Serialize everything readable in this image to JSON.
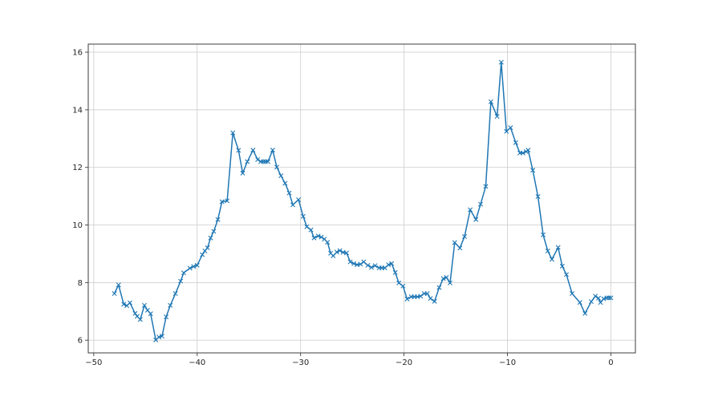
{
  "figure": {
    "background": "#ffffff",
    "title": ""
  },
  "chart_data": {
    "type": "line",
    "title": "",
    "xlabel": "",
    "ylabel": "",
    "grid": true,
    "legend": null,
    "marker": "x",
    "line_color": "#1f77b4",
    "grid_color": "#d2d2d2",
    "axis_color": "#3d3d3d",
    "tick_label_color": "#262626",
    "xlim": [
      -50.53,
      2.37
    ],
    "ylim": [
      5.56,
      16.28
    ],
    "x_ticks": [
      -50,
      -40,
      -30,
      -20,
      -10,
      0
    ],
    "x_tick_labels": [
      "−50",
      "−40",
      "−30",
      "−20",
      "−10",
      "0"
    ],
    "y_ticks": [
      6,
      8,
      10,
      12,
      14,
      16
    ],
    "y_tick_labels": [
      "6",
      "8",
      "10",
      "12",
      "14",
      "16"
    ],
    "series": [
      {
        "name": "series-1",
        "points": [
          [
            -48.0,
            7.62
          ],
          [
            -47.6,
            7.92
          ],
          [
            -47.1,
            7.25
          ],
          [
            -46.8,
            7.2
          ],
          [
            -46.5,
            7.3
          ],
          [
            -46.0,
            6.93
          ],
          [
            -45.8,
            6.83
          ],
          [
            -45.5,
            6.72
          ],
          [
            -45.1,
            7.21
          ],
          [
            -44.8,
            7.04
          ],
          [
            -44.5,
            6.92
          ],
          [
            -44.0,
            6.01
          ],
          [
            -43.7,
            6.11
          ],
          [
            -43.4,
            6.14
          ],
          [
            -43.0,
            6.81
          ],
          [
            -42.6,
            7.21
          ],
          [
            -42.1,
            7.62
          ],
          [
            -41.6,
            8.05
          ],
          [
            -41.3,
            8.34
          ],
          [
            -40.7,
            8.5
          ],
          [
            -40.35,
            8.56
          ],
          [
            -40.0,
            8.6
          ],
          [
            -39.5,
            8.97
          ],
          [
            -39.25,
            9.1
          ],
          [
            -39.0,
            9.21
          ],
          [
            -38.7,
            9.55
          ],
          [
            -38.4,
            9.78
          ],
          [
            -38.0,
            10.19
          ],
          [
            -37.6,
            10.81
          ],
          [
            -37.1,
            10.84
          ],
          [
            -36.55,
            13.2
          ],
          [
            -36.0,
            12.59
          ],
          [
            -35.6,
            11.8
          ],
          [
            -35.15,
            12.2
          ],
          [
            -34.6,
            12.6
          ],
          [
            -34.15,
            12.27
          ],
          [
            -33.85,
            12.2
          ],
          [
            -33.6,
            12.2
          ],
          [
            -33.4,
            12.2
          ],
          [
            -33.15,
            12.2
          ],
          [
            -32.7,
            12.6
          ],
          [
            -32.3,
            12.01
          ],
          [
            -31.9,
            11.71
          ],
          [
            -31.5,
            11.45
          ],
          [
            -31.1,
            11.11
          ],
          [
            -30.75,
            10.7
          ],
          [
            -30.2,
            10.88
          ],
          [
            -29.75,
            10.3
          ],
          [
            -29.4,
            9.94
          ],
          [
            -29.0,
            9.83
          ],
          [
            -28.7,
            9.55
          ],
          [
            -28.3,
            9.62
          ],
          [
            -28.0,
            9.58
          ],
          [
            -27.7,
            9.51
          ],
          [
            -27.4,
            9.4
          ],
          [
            -27.1,
            9.02
          ],
          [
            -26.85,
            8.93
          ],
          [
            -26.5,
            9.06
          ],
          [
            -26.2,
            9.11
          ],
          [
            -25.9,
            9.05
          ],
          [
            -25.55,
            9.03
          ],
          [
            -25.2,
            8.72
          ],
          [
            -24.85,
            8.66
          ],
          [
            -24.55,
            8.62
          ],
          [
            -24.2,
            8.64
          ],
          [
            -23.9,
            8.72
          ],
          [
            -23.5,
            8.6
          ],
          [
            -23.15,
            8.53
          ],
          [
            -22.8,
            8.59
          ],
          [
            -22.4,
            8.51
          ],
          [
            -22.15,
            8.51
          ],
          [
            -21.85,
            8.51
          ],
          [
            -21.5,
            8.62
          ],
          [
            -21.2,
            8.66
          ],
          [
            -20.85,
            8.35
          ],
          [
            -20.5,
            7.99
          ],
          [
            -20.1,
            7.88
          ],
          [
            -19.7,
            7.43
          ],
          [
            -19.3,
            7.51
          ],
          [
            -19.0,
            7.51
          ],
          [
            -18.7,
            7.51
          ],
          [
            -18.4,
            7.53
          ],
          [
            -18.05,
            7.62
          ],
          [
            -17.75,
            7.62
          ],
          [
            -17.45,
            7.45
          ],
          [
            -17.05,
            7.35
          ],
          [
            -16.6,
            7.83
          ],
          [
            -16.2,
            8.14
          ],
          [
            -15.9,
            8.18
          ],
          [
            -15.55,
            7.99
          ],
          [
            -15.1,
            9.39
          ],
          [
            -14.6,
            9.2
          ],
          [
            -14.15,
            9.6
          ],
          [
            -13.6,
            10.53
          ],
          [
            -13.05,
            10.19
          ],
          [
            -12.6,
            10.72
          ],
          [
            -12.1,
            11.34
          ],
          [
            -11.6,
            14.28
          ],
          [
            -11.0,
            13.77
          ],
          [
            -10.6,
            15.65
          ],
          [
            -10.1,
            13.25
          ],
          [
            -9.7,
            13.38
          ],
          [
            -9.2,
            12.86
          ],
          [
            -8.8,
            12.5
          ],
          [
            -8.5,
            12.5
          ],
          [
            -8.2,
            12.55
          ],
          [
            -8.0,
            12.6
          ],
          [
            -7.55,
            11.9
          ],
          [
            -7.05,
            10.99
          ],
          [
            -6.55,
            9.66
          ],
          [
            -6.1,
            9.1
          ],
          [
            -5.7,
            8.81
          ],
          [
            -5.1,
            9.22
          ],
          [
            -4.7,
            8.57
          ],
          [
            -4.3,
            8.28
          ],
          [
            -3.75,
            7.62
          ],
          [
            -3.0,
            7.31
          ],
          [
            -2.5,
            6.93
          ],
          [
            -1.9,
            7.34
          ],
          [
            -1.5,
            7.53
          ],
          [
            -1.2,
            7.46
          ],
          [
            -1.0,
            7.31
          ],
          [
            -0.7,
            7.44
          ],
          [
            -0.4,
            7.47
          ],
          [
            -0.2,
            7.47
          ],
          [
            0.0,
            7.47
          ]
        ]
      }
    ]
  }
}
